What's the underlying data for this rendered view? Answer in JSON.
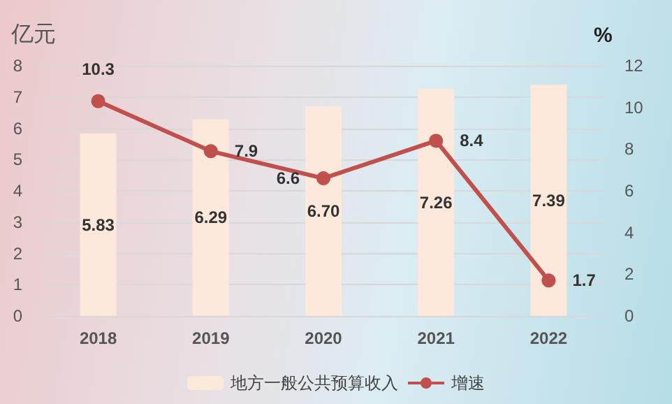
{
  "chart_data": {
    "type": "bar",
    "ylabel": "亿元",
    "y2label": "%",
    "categories": [
      "2018",
      "2019",
      "2020",
      "2021",
      "2022"
    ],
    "series": [
      {
        "name": "地方一般公共预算收入",
        "color": "#fde8dc",
        "values": [
          5.83,
          6.29,
          6.7,
          7.26,
          7.39
        ],
        "value_labels": [
          "5.83",
          "6.29",
          "6.70",
          "7.26",
          "7.39"
        ]
      },
      {
        "name": "增速",
        "type": "line",
        "axis": "y2",
        "color": "#c0504d",
        "marker": "circle",
        "values": [
          10.3,
          7.9,
          6.6,
          8.4,
          1.7
        ],
        "value_labels": [
          "10.3",
          "7.9",
          "6.6",
          "8.4",
          "1.7"
        ]
      }
    ],
    "ylim": [
      0,
      8
    ],
    "yticks": [
      0,
      1,
      2,
      3,
      4,
      5,
      6,
      7,
      8
    ],
    "y2lim": [
      0,
      12
    ],
    "y2ticks": [
      0,
      2,
      4,
      6,
      8,
      10,
      12
    ],
    "grid": "y",
    "legend": "bottom"
  }
}
